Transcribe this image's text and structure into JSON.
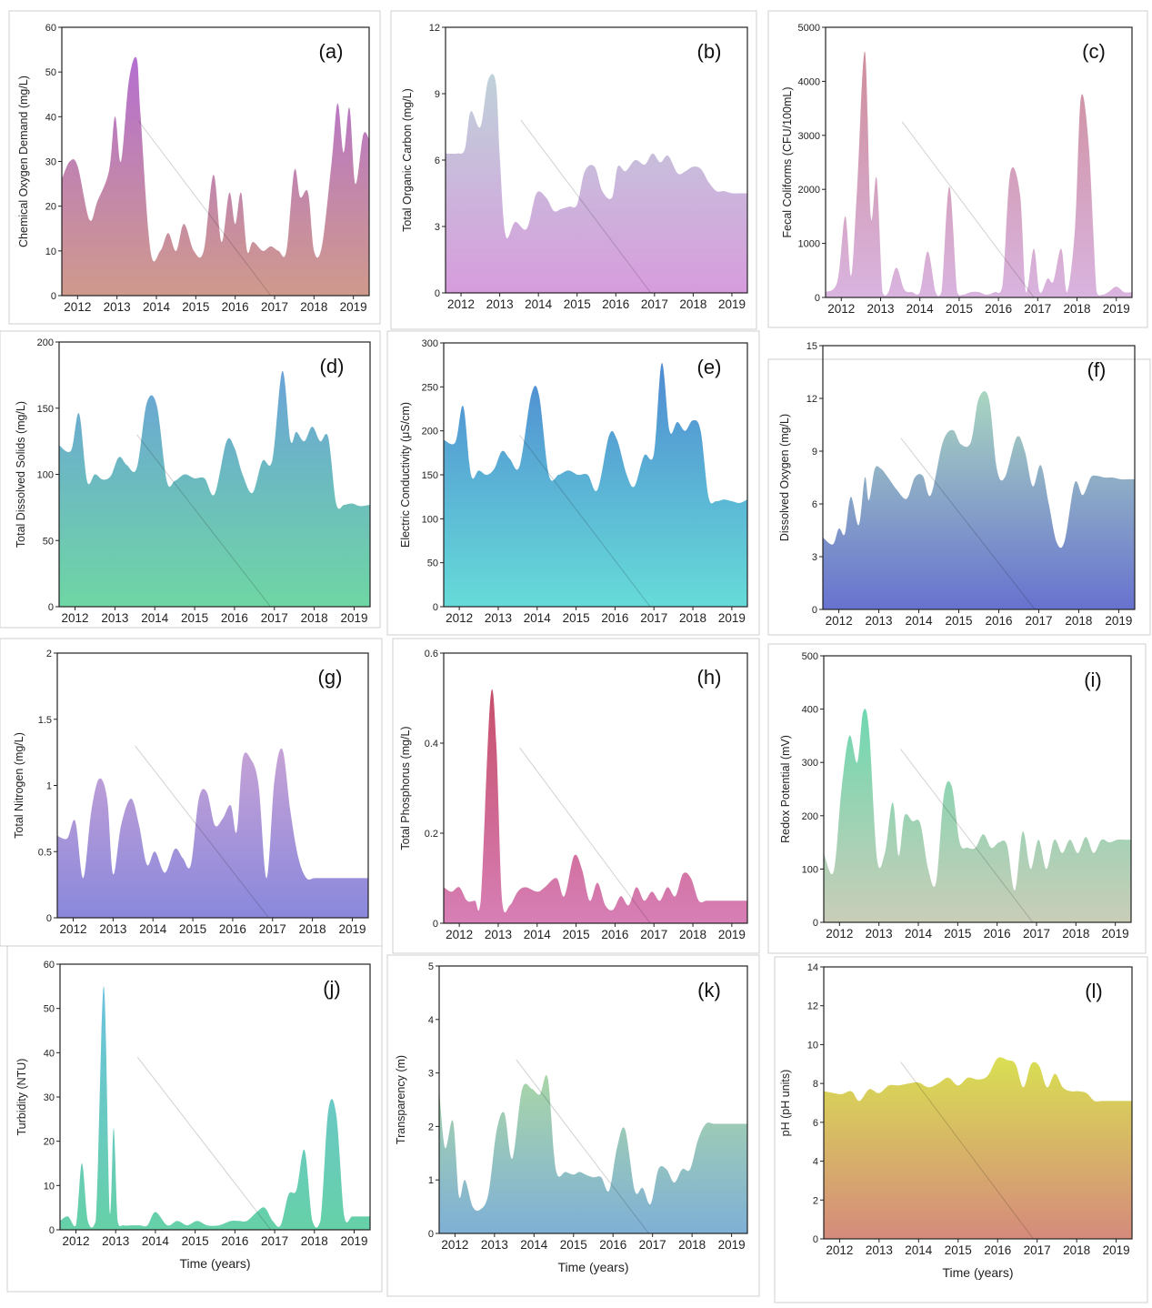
{
  "figure": {
    "x_label_text": "Time (years)",
    "year_ticks": [
      "2012",
      "2013",
      "2014",
      "2015",
      "2016",
      "2017",
      "2018",
      "2019"
    ]
  },
  "chart_data": [
    {
      "type": "area",
      "id": "a",
      "panel_label": "(a)",
      "ylabel": "Chemical Oxygen Demand (mg/L)",
      "xlabel": "",
      "ylim": [
        0,
        60
      ],
      "yticks": [
        0,
        10,
        20,
        30,
        40,
        50,
        60
      ],
      "colors": [
        "#b46fd0",
        "#cf9a8c"
      ],
      "xlim": [
        2011.6,
        2019.4
      ],
      "x": [
        2011.6,
        2011.8,
        2012.0,
        2012.3,
        2012.5,
        2012.8,
        2012.95,
        2013.1,
        2013.3,
        2013.5,
        2013.6,
        2013.85,
        2014.1,
        2014.3,
        2014.5,
        2014.7,
        2014.95,
        2015.2,
        2015.45,
        2015.65,
        2015.85,
        2016.0,
        2016.15,
        2016.3,
        2016.45,
        2016.7,
        2016.9,
        2017.1,
        2017.3,
        2017.5,
        2017.65,
        2017.85,
        2018.0,
        2018.2,
        2018.45,
        2018.6,
        2018.75,
        2018.9,
        2019.05,
        2019.25,
        2019.4
      ],
      "y": [
        26,
        30,
        29,
        17,
        21,
        28,
        40,
        30,
        48,
        53,
        40,
        10,
        10,
        14,
        10,
        16,
        10,
        10,
        27,
        12,
        23,
        16,
        23,
        10,
        12,
        10,
        11,
        10,
        10,
        28,
        22,
        23,
        10,
        11,
        30,
        43,
        32,
        42,
        25,
        36,
        35
      ]
    },
    {
      "type": "area",
      "id": "b",
      "panel_label": "(b)",
      "ylabel": "Total Organic Carbon (mg/L)",
      "xlabel": "",
      "ylim": [
        0,
        12
      ],
      "yticks": [
        0,
        3,
        6,
        9,
        12
      ],
      "colors": [
        "#bfd2da",
        "#d79cdd"
      ],
      "xlim": [
        2011.6,
        2019.4
      ],
      "x": [
        2011.6,
        2011.9,
        2012.1,
        2012.25,
        2012.5,
        2012.7,
        2012.9,
        2013.0,
        2013.15,
        2013.4,
        2013.7,
        2013.95,
        2014.2,
        2014.4,
        2014.6,
        2014.8,
        2015.0,
        2015.2,
        2015.45,
        2015.65,
        2015.9,
        2016.05,
        2016.25,
        2016.5,
        2016.75,
        2016.95,
        2017.15,
        2017.35,
        2017.6,
        2017.8,
        2018.0,
        2018.2,
        2018.4,
        2018.6,
        2018.8,
        2019.0,
        2019.2,
        2019.4
      ],
      "y": [
        6.3,
        6.3,
        6.5,
        8.2,
        7.5,
        9.6,
        9.5,
        6.2,
        2.6,
        3.2,
        2.9,
        4.5,
        4.3,
        3.7,
        3.8,
        3.9,
        4.0,
        5.5,
        5.7,
        4.6,
        4.3,
        5.7,
        5.5,
        6.0,
        5.8,
        6.3,
        5.9,
        6.2,
        5.4,
        5.5,
        5.7,
        5.6,
        5.0,
        4.6,
        4.6,
        4.5,
        4.5,
        4.5
      ]
    },
    {
      "type": "area",
      "id": "c",
      "panel_label": "(c)",
      "ylabel": "Fecal Coliforms (CFU/100mL)",
      "xlabel": "",
      "ylim": [
        0,
        5000
      ],
      "yticks": [
        0,
        1000,
        2000,
        3000,
        4000,
        5000
      ],
      "colors": [
        "#cf8d9a",
        "#d9b4df"
      ],
      "xlim": [
        2011.6,
        2019.4
      ],
      "x": [
        2011.6,
        2011.9,
        2012.1,
        2012.25,
        2012.4,
        2012.6,
        2012.75,
        2012.9,
        2013.05,
        2013.2,
        2013.4,
        2013.6,
        2013.8,
        2014.0,
        2014.2,
        2014.4,
        2014.55,
        2014.75,
        2014.95,
        2015.1,
        2015.3,
        2015.5,
        2015.7,
        2015.9,
        2016.1,
        2016.3,
        2016.55,
        2016.7,
        2016.9,
        2017.05,
        2017.25,
        2017.4,
        2017.6,
        2017.75,
        2017.95,
        2018.1,
        2018.3,
        2018.5,
        2018.65,
        2018.8,
        2019.0,
        2019.2,
        2019.4
      ],
      "y": [
        100,
        300,
        1500,
        400,
        2000,
        4550,
        1500,
        2200,
        100,
        100,
        550,
        150,
        100,
        100,
        850,
        100,
        100,
        2050,
        100,
        50,
        100,
        100,
        50,
        100,
        200,
        2300,
        1900,
        100,
        900,
        100,
        350,
        300,
        900,
        100,
        1300,
        3700,
        2800,
        100,
        50,
        100,
        200,
        100,
        100
      ]
    },
    {
      "type": "area",
      "id": "d",
      "panel_label": "(d)",
      "ylabel": "Total Dissolved Solids (mg/L)",
      "xlabel": "",
      "ylim": [
        0,
        200
      ],
      "yticks": [
        0,
        50,
        100,
        150,
        200
      ],
      "colors": [
        "#6aa3d8",
        "#6fd6a4"
      ],
      "xlim": [
        2011.6,
        2019.4
      ],
      "x": [
        2011.6,
        2011.9,
        2012.1,
        2012.3,
        2012.5,
        2012.7,
        2012.9,
        2013.1,
        2013.3,
        2013.55,
        2013.8,
        2014.05,
        2014.3,
        2014.5,
        2014.75,
        2015.0,
        2015.25,
        2015.5,
        2015.8,
        2016.0,
        2016.2,
        2016.45,
        2016.7,
        2016.95,
        2017.2,
        2017.4,
        2017.55,
        2017.75,
        2017.95,
        2018.15,
        2018.35,
        2018.55,
        2018.75,
        2018.95,
        2019.15,
        2019.4
      ],
      "y": [
        122,
        118,
        146,
        95,
        100,
        96,
        99,
        113,
        107,
        105,
        154,
        152,
        95,
        95,
        100,
        97,
        97,
        85,
        125,
        120,
        100,
        86,
        110,
        111,
        178,
        126,
        132,
        125,
        136,
        125,
        128,
        78,
        77,
        78,
        76,
        77
      ]
    },
    {
      "type": "area",
      "id": "e",
      "panel_label": "(e)",
      "ylabel": "Electric Conductivity (μS/cm)",
      "xlabel": "",
      "ylim": [
        0,
        300
      ],
      "yticks": [
        0,
        50,
        100,
        150,
        200,
        250,
        300
      ],
      "colors": [
        "#4f8ad2",
        "#66dbd8"
      ],
      "xlim": [
        2011.6,
        2019.4
      ],
      "x": [
        2011.6,
        2011.9,
        2012.1,
        2012.3,
        2012.5,
        2012.7,
        2012.9,
        2013.1,
        2013.3,
        2013.55,
        2013.85,
        2014.05,
        2014.3,
        2014.55,
        2014.8,
        2015.05,
        2015.3,
        2015.55,
        2015.85,
        2016.05,
        2016.3,
        2016.5,
        2016.75,
        2017.0,
        2017.2,
        2017.4,
        2017.6,
        2017.8,
        2018.0,
        2018.2,
        2018.4,
        2018.6,
        2018.8,
        2019.0,
        2019.2,
        2019.4
      ],
      "y": [
        190,
        187,
        228,
        150,
        155,
        150,
        157,
        177,
        168,
        160,
        241,
        240,
        150,
        150,
        155,
        150,
        150,
        133,
        195,
        190,
        150,
        137,
        172,
        174,
        277,
        200,
        210,
        200,
        212,
        200,
        125,
        120,
        122,
        120,
        118,
        122
      ]
    },
    {
      "type": "area",
      "id": "f",
      "panel_label": "(f)",
      "ylabel": "Dissolved Oxygen (mg/L)",
      "xlabel": "",
      "ylim": [
        0,
        15
      ],
      "yticks": [
        0,
        3,
        6,
        9,
        12,
        15
      ],
      "colors": [
        "#a9d6c0",
        "#6772cf"
      ],
      "xlim": [
        2011.6,
        2019.4
      ],
      "x": [
        2011.6,
        2011.85,
        2012.0,
        2012.15,
        2012.3,
        2012.5,
        2012.65,
        2012.75,
        2012.9,
        2013.05,
        2013.2,
        2013.45,
        2013.7,
        2013.9,
        2014.1,
        2014.3,
        2014.6,
        2014.85,
        2015.05,
        2015.3,
        2015.5,
        2015.75,
        2015.95,
        2016.15,
        2016.45,
        2016.65,
        2016.85,
        2017.05,
        2017.25,
        2017.45,
        2017.65,
        2017.9,
        2018.1,
        2018.3,
        2018.45,
        2018.65,
        2018.85,
        2019.05,
        2019.2,
        2019.4
      ],
      "y": [
        4.1,
        3.7,
        4.6,
        4.3,
        6.4,
        4.8,
        7.5,
        6.2,
        8.0,
        8.0,
        7.6,
        6.8,
        6.3,
        7.5,
        7.6,
        6.5,
        9.5,
        10.2,
        9.4,
        9.5,
        12.0,
        12.0,
        8.0,
        7.5,
        9.8,
        9.0,
        7.0,
        8.2,
        6.0,
        3.8,
        3.9,
        7.2,
        6.5,
        7.5,
        7.6,
        7.5,
        7.5,
        7.4,
        7.4,
        7.4
      ]
    },
    {
      "type": "area",
      "id": "g",
      "panel_label": "(g)",
      "ylabel": "Total Nitrogen (mg/L)",
      "xlabel": "",
      "ylim": [
        0,
        2.0
      ],
      "yticks": [
        0.0,
        0.5,
        1.0,
        1.5,
        2.0
      ],
      "colors": [
        "#c6a2d6",
        "#8a88dc"
      ],
      "xlim": [
        2011.6,
        2019.4
      ],
      "x": [
        2011.6,
        2011.85,
        2012.05,
        2012.25,
        2012.45,
        2012.65,
        2012.85,
        2013.0,
        2013.2,
        2013.45,
        2013.65,
        2013.85,
        2014.05,
        2014.3,
        2014.55,
        2014.75,
        2014.95,
        2015.15,
        2015.35,
        2015.55,
        2015.75,
        2015.95,
        2016.1,
        2016.25,
        2016.45,
        2016.65,
        2016.85,
        2017.05,
        2017.25,
        2017.45,
        2017.65,
        2017.85,
        2018.05,
        2018.25,
        2018.45,
        2018.65,
        2018.85,
        2019.05,
        2019.25,
        2019.4
      ],
      "y": [
        0.62,
        0.6,
        0.73,
        0.3,
        0.8,
        1.05,
        0.9,
        0.33,
        0.7,
        0.9,
        0.7,
        0.4,
        0.5,
        0.34,
        0.52,
        0.45,
        0.4,
        0.9,
        0.95,
        0.7,
        0.75,
        0.85,
        0.65,
        1.2,
        1.2,
        1.0,
        0.3,
        1.05,
        1.27,
        0.8,
        0.45,
        0.3,
        0.3,
        0.3,
        0.3,
        0.3,
        0.3,
        0.3,
        0.3,
        0.3
      ]
    },
    {
      "type": "area",
      "id": "h",
      "panel_label": "(h)",
      "ylabel": "Total Phosphorus (mg/L)",
      "xlabel": "",
      "ylim": [
        0,
        0.6
      ],
      "yticks": [
        0.0,
        0.2,
        0.4,
        0.6
      ],
      "colors": [
        "#c64f6a",
        "#d77fb6"
      ],
      "xlim": [
        2011.6,
        2019.4
      ],
      "x": [
        2011.6,
        2011.8,
        2012.0,
        2012.2,
        2012.4,
        2012.55,
        2012.8,
        2012.95,
        2013.1,
        2013.3,
        2013.5,
        2013.7,
        2014.0,
        2014.2,
        2014.5,
        2014.7,
        2014.95,
        2015.15,
        2015.35,
        2015.55,
        2015.75,
        2015.95,
        2016.15,
        2016.35,
        2016.55,
        2016.75,
        2016.95,
        2017.15,
        2017.35,
        2017.55,
        2017.75,
        2017.95,
        2018.15,
        2018.35,
        2018.55,
        2018.75,
        2018.95,
        2019.15,
        2019.4
      ],
      "y": [
        0.08,
        0.07,
        0.08,
        0.05,
        0.05,
        0.05,
        0.5,
        0.4,
        0.05,
        0.04,
        0.07,
        0.08,
        0.07,
        0.08,
        0.1,
        0.06,
        0.15,
        0.12,
        0.05,
        0.09,
        0.04,
        0.03,
        0.06,
        0.04,
        0.08,
        0.05,
        0.07,
        0.05,
        0.08,
        0.06,
        0.11,
        0.1,
        0.05,
        0.05,
        0.05,
        0.05,
        0.05,
        0.05,
        0.05
      ]
    },
    {
      "type": "area",
      "id": "i",
      "panel_label": "(i)",
      "ylabel": "Redox Potential (mV)",
      "xlabel": "",
      "ylim": [
        0,
        500
      ],
      "yticks": [
        0,
        100,
        200,
        300,
        400,
        500
      ],
      "colors": [
        "#6fd8b0",
        "#c9cdb8"
      ],
      "xlim": [
        2011.6,
        2019.4
      ],
      "x": [
        2011.6,
        2011.85,
        2012.05,
        2012.25,
        2012.45,
        2012.6,
        2012.75,
        2012.95,
        2013.15,
        2013.35,
        2013.5,
        2013.65,
        2013.85,
        2014.05,
        2014.25,
        2014.45,
        2014.65,
        2014.85,
        2015.05,
        2015.25,
        2015.45,
        2015.65,
        2015.85,
        2016.05,
        2016.25,
        2016.45,
        2016.65,
        2016.85,
        2017.05,
        2017.25,
        2017.45,
        2017.65,
        2017.85,
        2018.05,
        2018.25,
        2018.45,
        2018.65,
        2018.85,
        2019.05,
        2019.25,
        2019.4
      ],
      "y": [
        130,
        95,
        250,
        350,
        300,
        395,
        360,
        120,
        130,
        225,
        125,
        200,
        190,
        185,
        100,
        75,
        240,
        255,
        150,
        140,
        140,
        165,
        140,
        150,
        145,
        60,
        170,
        100,
        155,
        100,
        155,
        130,
        155,
        130,
        160,
        130,
        155,
        150,
        155,
        155,
        155
      ]
    },
    {
      "type": "area",
      "id": "j",
      "panel_label": "(j)",
      "ylabel": "Turbidity (NTU)",
      "xlabel": "Time (years)",
      "ylim": [
        0,
        60
      ],
      "yticks": [
        0,
        10,
        20,
        30,
        40,
        50,
        60
      ],
      "colors": [
        "#6cc2df",
        "#66d0a8"
      ],
      "xlim": [
        2011.6,
        2019.4
      ],
      "x": [
        2011.6,
        2011.8,
        2012.0,
        2012.15,
        2012.3,
        2012.5,
        2012.7,
        2012.85,
        2012.95,
        2013.05,
        2013.2,
        2013.4,
        2013.6,
        2013.8,
        2014.0,
        2014.3,
        2014.55,
        2014.8,
        2015.05,
        2015.3,
        2015.6,
        2015.9,
        2016.1,
        2016.3,
        2016.55,
        2016.75,
        2016.95,
        2017.15,
        2017.35,
        2017.55,
        2017.75,
        2017.95,
        2018.15,
        2018.35,
        2018.55,
        2018.75,
        2018.95,
        2019.15,
        2019.4
      ],
      "y": [
        2,
        3,
        1,
        15,
        2,
        2,
        55,
        4,
        23,
        2,
        1,
        1,
        1,
        1,
        4,
        1,
        2,
        1,
        2,
        1,
        1,
        2,
        2,
        2,
        4,
        5,
        2,
        1,
        8,
        9,
        18,
        2,
        2,
        27,
        26,
        3,
        3,
        3,
        3
      ]
    },
    {
      "type": "area",
      "id": "k",
      "panel_label": "(k)",
      "ylabel": "Transparency (m)",
      "xlabel": "Time (years)",
      "ylim": [
        0,
        5
      ],
      "yticks": [
        0,
        1,
        2,
        3,
        4,
        5
      ],
      "colors": [
        "#a9d6a8",
        "#7fb0d6"
      ],
      "xlim": [
        2011.6,
        2019.4
      ],
      "x": [
        2011.6,
        2011.75,
        2011.95,
        2012.1,
        2012.25,
        2012.45,
        2012.65,
        2012.85,
        2013.05,
        2013.25,
        2013.45,
        2013.7,
        2013.95,
        2014.15,
        2014.35,
        2014.55,
        2014.8,
        2015.0,
        2015.15,
        2015.3,
        2015.5,
        2015.7,
        2015.9,
        2016.1,
        2016.3,
        2016.55,
        2016.75,
        2016.95,
        2017.15,
        2017.35,
        2017.55,
        2017.75,
        2017.95,
        2018.15,
        2018.35,
        2018.55,
        2018.75,
        2018.95,
        2019.15,
        2019.4
      ],
      "y": [
        2.7,
        1.6,
        2.1,
        0.7,
        1.0,
        0.5,
        0.45,
        0.75,
        1.9,
        2.25,
        1.4,
        2.7,
        2.7,
        2.6,
        2.9,
        1.2,
        1.15,
        1.1,
        1.15,
        1.1,
        1.05,
        1.05,
        0.8,
        1.6,
        1.95,
        0.8,
        0.85,
        0.55,
        1.2,
        1.2,
        0.95,
        1.2,
        1.2,
        1.75,
        2.05,
        2.05,
        2.05,
        2.05,
        2.05,
        2.05
      ]
    },
    {
      "type": "area",
      "id": "l",
      "panel_label": "(l)",
      "ylabel": "pH (pH units)",
      "xlabel": "Time (years)",
      "ylim": [
        0,
        14
      ],
      "yticks": [
        0,
        2,
        4,
        6,
        8,
        10,
        12,
        14
      ],
      "colors": [
        "#d9df52",
        "#d58a7c"
      ],
      "xlim": [
        2011.6,
        2019.4
      ],
      "x": [
        2011.6,
        2011.85,
        2012.05,
        2012.3,
        2012.5,
        2012.75,
        2013.0,
        2013.25,
        2013.5,
        2013.75,
        2014.0,
        2014.25,
        2014.5,
        2014.75,
        2015.0,
        2015.25,
        2015.5,
        2015.75,
        2016.0,
        2016.25,
        2016.45,
        2016.65,
        2016.85,
        2017.05,
        2017.25,
        2017.45,
        2017.65,
        2017.85,
        2018.05,
        2018.25,
        2018.45,
        2018.65,
        2018.85,
        2019.05,
        2019.25,
        2019.4
      ],
      "y": [
        7.6,
        7.5,
        7.45,
        7.6,
        7.1,
        7.7,
        7.5,
        7.9,
        7.9,
        8.0,
        8.05,
        7.8,
        8.0,
        8.3,
        7.9,
        8.3,
        8.2,
        8.4,
        9.3,
        9.2,
        9.0,
        7.8,
        9.0,
        8.9,
        7.8,
        8.5,
        7.8,
        7.6,
        7.6,
        7.5,
        7.1,
        7.1,
        7.1,
        7.1,
        7.1,
        7.1
      ]
    }
  ]
}
